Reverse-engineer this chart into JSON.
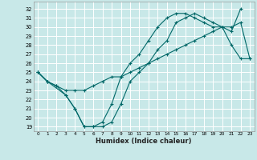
{
  "xlabel": "Humidex (Indice chaleur)",
  "bg_color": "#c8e8e8",
  "grid_color": "#ffffff",
  "line_color": "#006868",
  "xlim": [
    -0.5,
    23.5
  ],
  "ylim": [
    18.5,
    32.8
  ],
  "xticks": [
    0,
    1,
    2,
    3,
    4,
    5,
    6,
    7,
    8,
    9,
    10,
    11,
    12,
    13,
    14,
    15,
    16,
    17,
    18,
    19,
    20,
    21,
    22,
    23
  ],
  "yticks": [
    19,
    20,
    21,
    22,
    23,
    24,
    25,
    26,
    27,
    28,
    29,
    30,
    31,
    32
  ],
  "line1_x": [
    0,
    1,
    3,
    4,
    5,
    6,
    7,
    8,
    9,
    10,
    11,
    12,
    13,
    14,
    15,
    16,
    17,
    18,
    19,
    20,
    21,
    22
  ],
  "line1_y": [
    25,
    24,
    22.5,
    21,
    19,
    19,
    19,
    19.5,
    21.5,
    24,
    25,
    26,
    27.5,
    28.5,
    30.5,
    31,
    31.5,
    31,
    30.5,
    30,
    29.5,
    32
  ],
  "line2_x": [
    0,
    1,
    2,
    3,
    4,
    5,
    6,
    7,
    8,
    9,
    10,
    11,
    12,
    13,
    14,
    15,
    16,
    17,
    18,
    19,
    20,
    21,
    22,
    23
  ],
  "line2_y": [
    25,
    24,
    23.5,
    23,
    23,
    23,
    23.5,
    24,
    24.5,
    24.5,
    25,
    25.5,
    26,
    26.5,
    27,
    27.5,
    28,
    28.5,
    29,
    29.5,
    30,
    30,
    30.5,
    26.5
  ],
  "line3_x": [
    0,
    1,
    2,
    3,
    4,
    5,
    6,
    7,
    8,
    9,
    10,
    11,
    12,
    13,
    14,
    15,
    16,
    17,
    18,
    19,
    20,
    21,
    22,
    23
  ],
  "line3_y": [
    25,
    24,
    23.5,
    22.5,
    21,
    19,
    19,
    19.5,
    21.5,
    24.5,
    26,
    27,
    28.5,
    30,
    31,
    31.5,
    31.5,
    31,
    30.5,
    30,
    30,
    28,
    26.5,
    26.5
  ]
}
